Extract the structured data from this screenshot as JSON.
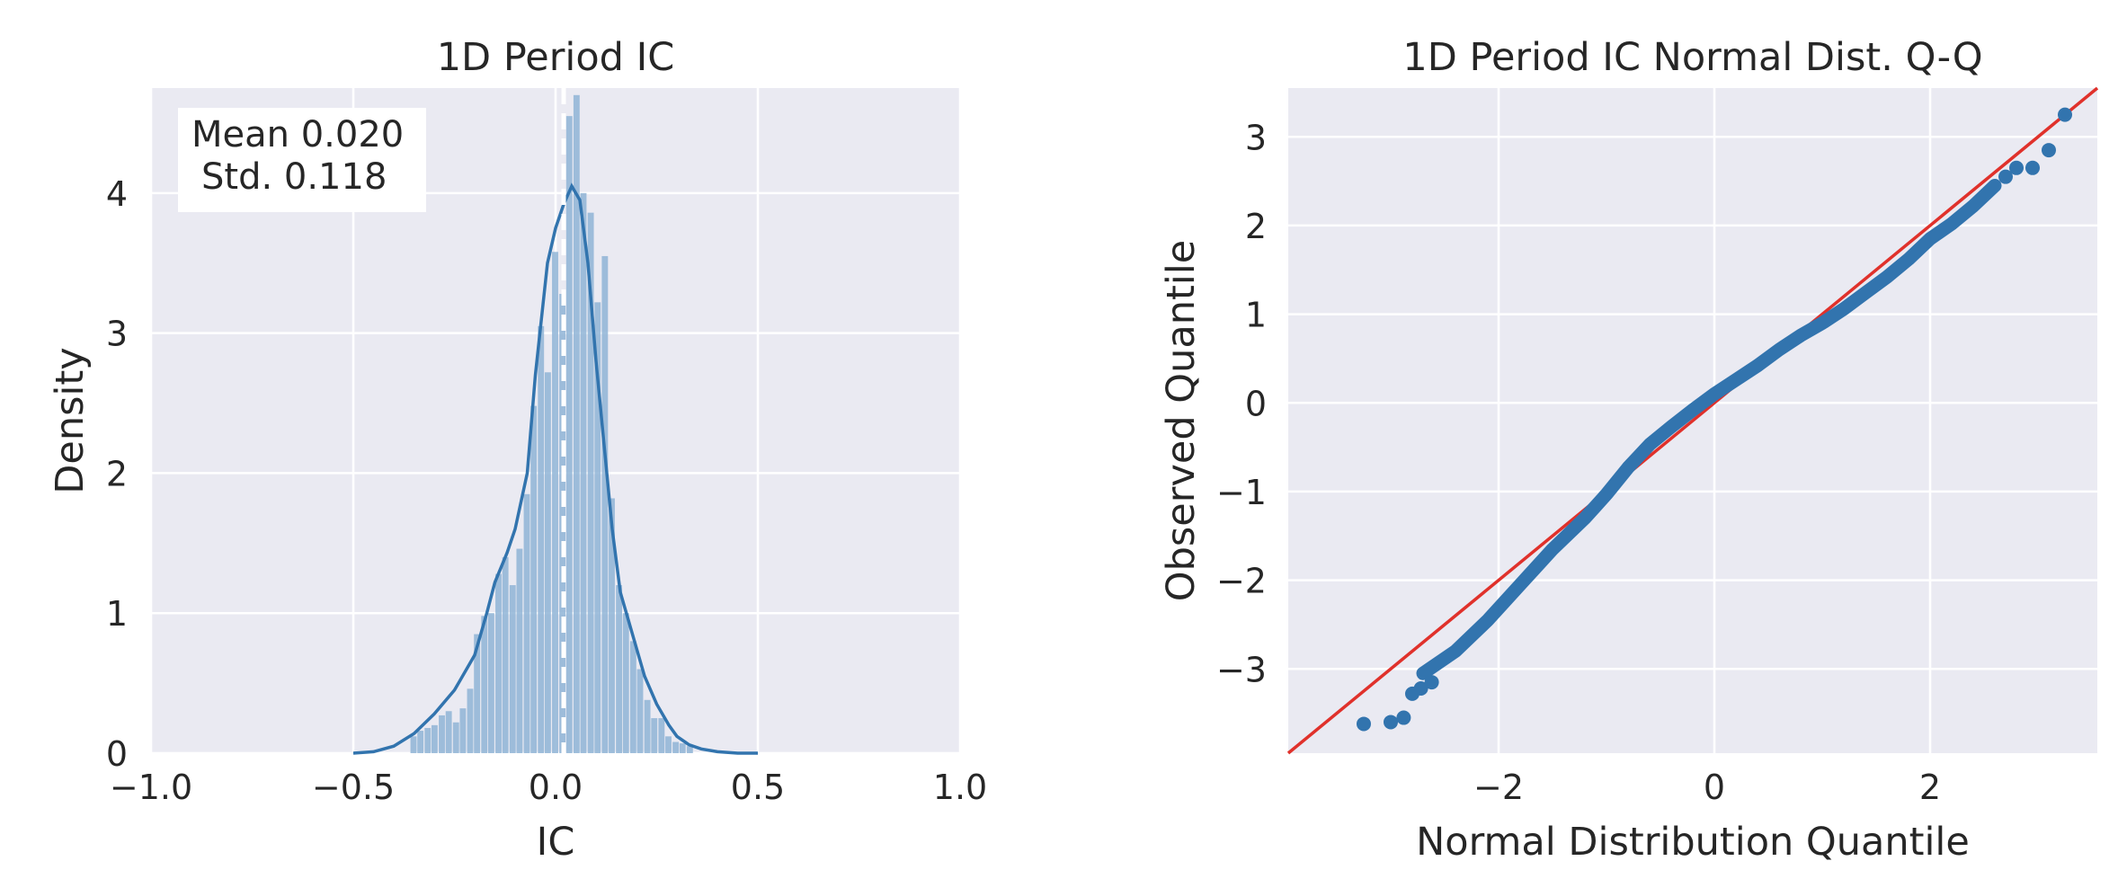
{
  "colors": {
    "panel_bg": "#eaeaf2",
    "grid": "#ffffff",
    "hist_fill": "#8fb4d6",
    "kde_line": "#3274ae",
    "mean_line": "#ffffff",
    "qq_points": "#3274ae",
    "qq_line": "#e0312b"
  },
  "chart_data": [
    {
      "type": "bar",
      "subtype": "histogram_with_kde",
      "title": "1D Period IC",
      "xlabel": "IC",
      "ylabel": "Density",
      "xlim": [
        -1.0,
        1.0
      ],
      "ylim": [
        0,
        4.75
      ],
      "xticks": [
        -1.0,
        -0.5,
        0.0,
        0.5,
        1.0
      ],
      "xtick_labels": [
        "−1.0",
        "−0.5",
        "0.0",
        "0.5",
        "1.0"
      ],
      "yticks": [
        0,
        1,
        2,
        3,
        4
      ],
      "ytick_labels": [
        "0",
        "1",
        "2",
        "3",
        "4"
      ],
      "grid": true,
      "mean": 0.02,
      "annotation": [
        "Mean 0.020",
        "Std. 0.118"
      ],
      "annotation_position": "top-left",
      "bin_width": 0.0175,
      "bins": [
        {
          "x": -0.35,
          "d": 0.12
        },
        {
          "x": -0.333,
          "d": 0.16
        },
        {
          "x": -0.315,
          "d": 0.18
        },
        {
          "x": -0.298,
          "d": 0.2
        },
        {
          "x": -0.28,
          "d": 0.27
        },
        {
          "x": -0.263,
          "d": 0.3
        },
        {
          "x": -0.245,
          "d": 0.22
        },
        {
          "x": -0.228,
          "d": 0.32
        },
        {
          "x": -0.21,
          "d": 0.46
        },
        {
          "x": -0.193,
          "d": 0.85
        },
        {
          "x": -0.175,
          "d": 0.98
        },
        {
          "x": -0.158,
          "d": 1.0
        },
        {
          "x": -0.14,
          "d": 1.28
        },
        {
          "x": -0.123,
          "d": 1.4
        },
        {
          "x": -0.105,
          "d": 1.2
        },
        {
          "x": -0.088,
          "d": 1.46
        },
        {
          "x": -0.07,
          "d": 1.85
        },
        {
          "x": -0.053,
          "d": 2.48
        },
        {
          "x": -0.035,
          "d": 3.05
        },
        {
          "x": -0.018,
          "d": 2.72
        },
        {
          "x": 0.0,
          "d": 3.58
        },
        {
          "x": 0.018,
          "d": 3.28
        },
        {
          "x": 0.035,
          "d": 4.55
        },
        {
          "x": 0.053,
          "d": 4.7
        },
        {
          "x": 0.07,
          "d": 4.0
        },
        {
          "x": 0.088,
          "d": 3.86
        },
        {
          "x": 0.105,
          "d": 3.22
        },
        {
          "x": 0.123,
          "d": 3.55
        },
        {
          "x": 0.14,
          "d": 1.82
        },
        {
          "x": 0.158,
          "d": 1.2
        },
        {
          "x": 0.175,
          "d": 1.0
        },
        {
          "x": 0.193,
          "d": 0.8
        },
        {
          "x": 0.21,
          "d": 0.6
        },
        {
          "x": 0.228,
          "d": 0.38
        },
        {
          "x": 0.245,
          "d": 0.25
        },
        {
          "x": 0.263,
          "d": 0.25
        },
        {
          "x": 0.28,
          "d": 0.12
        },
        {
          "x": 0.298,
          "d": 0.08
        },
        {
          "x": 0.315,
          "d": 0.07
        },
        {
          "x": 0.333,
          "d": 0.05
        }
      ],
      "kde": {
        "x": [
          -0.5,
          -0.45,
          -0.4,
          -0.35,
          -0.3,
          -0.25,
          -0.2,
          -0.17,
          -0.15,
          -0.12,
          -0.1,
          -0.07,
          -0.05,
          -0.02,
          0.0,
          0.02,
          0.04,
          0.06,
          0.08,
          0.1,
          0.12,
          0.14,
          0.16,
          0.18,
          0.2,
          0.22,
          0.25,
          0.28,
          0.3,
          0.33,
          0.36,
          0.4,
          0.45,
          0.5
        ],
        "y": [
          0.0,
          0.01,
          0.05,
          0.14,
          0.28,
          0.45,
          0.7,
          1.0,
          1.22,
          1.43,
          1.6,
          2.0,
          2.7,
          3.5,
          3.75,
          3.92,
          4.05,
          3.95,
          3.5,
          2.8,
          2.2,
          1.6,
          1.15,
          0.95,
          0.75,
          0.55,
          0.35,
          0.2,
          0.12,
          0.06,
          0.03,
          0.01,
          0.0,
          0.0
        ]
      }
    },
    {
      "type": "scatter",
      "subtype": "qq_plot",
      "title": "1D Period IC Normal Dist. Q-Q",
      "xlabel": "Normal Distribution Quantile",
      "ylabel": "Observed Quantile",
      "xlim": [
        -3.95,
        3.55
      ],
      "ylim": [
        -3.95,
        3.55
      ],
      "xticks": [
        -2,
        0,
        2
      ],
      "xtick_labels": [
        "−2",
        "0",
        "2"
      ],
      "yticks": [
        -3,
        -2,
        -1,
        0,
        1,
        2,
        3
      ],
      "ytick_labels": [
        "−3",
        "−2",
        "−1",
        "0",
        "1",
        "2",
        "3"
      ],
      "grid": true,
      "reference_line": {
        "slope": 1,
        "intercept": 0
      },
      "quantile_curve": {
        "x": [
          -2.7,
          -2.4,
          -2.1,
          -1.8,
          -1.5,
          -1.2,
          -1.0,
          -0.8,
          -0.6,
          -0.4,
          -0.2,
          0.0,
          0.2,
          0.4,
          0.6,
          0.8,
          1.0,
          1.2,
          1.4,
          1.6,
          1.8,
          2.0,
          2.2,
          2.4,
          2.6
        ],
        "y": [
          -3.05,
          -2.8,
          -2.45,
          -2.05,
          -1.65,
          -1.3,
          -1.03,
          -0.73,
          -0.47,
          -0.27,
          -0.08,
          0.1,
          0.26,
          0.42,
          0.6,
          0.76,
          0.9,
          1.06,
          1.24,
          1.42,
          1.62,
          1.85,
          2.02,
          2.22,
          2.45
        ]
      },
      "points": [
        {
          "x": -3.25,
          "y": -3.62
        },
        {
          "x": -3.0,
          "y": -3.6
        },
        {
          "x": -2.88,
          "y": -3.55
        },
        {
          "x": -2.8,
          "y": -3.28
        },
        {
          "x": -2.72,
          "y": -3.22
        },
        {
          "x": -2.62,
          "y": -3.15
        },
        {
          "x": 2.7,
          "y": 2.55
        },
        {
          "x": 2.8,
          "y": 2.65
        },
        {
          "x": 2.95,
          "y": 2.65
        },
        {
          "x": 3.1,
          "y": 2.85
        },
        {
          "x": 3.25,
          "y": 3.25
        }
      ]
    }
  ]
}
